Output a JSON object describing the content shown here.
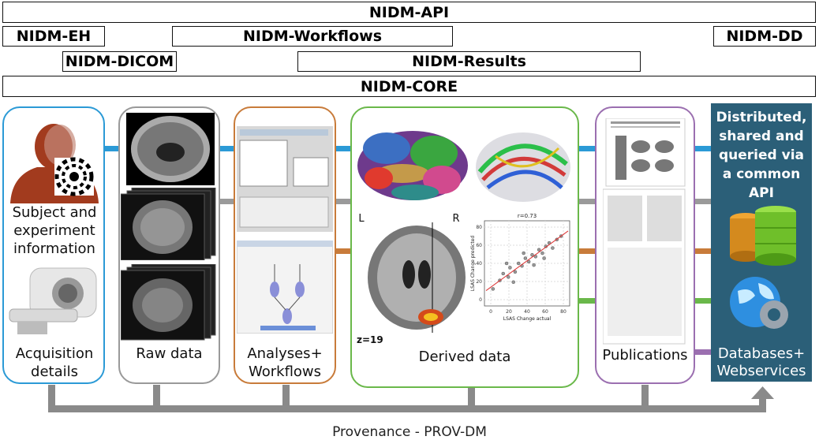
{
  "layers": {
    "api": "NIDM-API",
    "eh": "NIDM-EH",
    "workflows": "NIDM-Workflows",
    "dd": "NIDM-DD",
    "dicom": "NIDM-DICOM",
    "results": "NIDM-Results",
    "core": "NIDM-CORE"
  },
  "panels": {
    "subject_l1": "Subject and",
    "subject_l2": "experiment",
    "subject_l3": "information",
    "acq_l1": "Acquisition",
    "acq_l2": "details",
    "raw": "Raw data",
    "analyses_l1": "Analyses+",
    "analyses_l2": "Workflows",
    "derived": "Derived data",
    "publications": "Publications"
  },
  "brain": {
    "left": "L",
    "right": "R",
    "slice": "z=19"
  },
  "scatter": {
    "title": "r=0.73",
    "xlabel": "LSAS Change actual",
    "ylabel": "LSAS Change predicted",
    "xticks": [
      "0",
      "20",
      "40",
      "60",
      "80"
    ],
    "yticks": [
      "0",
      "20",
      "40",
      "60",
      "80"
    ]
  },
  "database": {
    "title_l1": "Distributed,",
    "title_l2": "shared and",
    "title_l3": "queried via",
    "title_l4": "a common",
    "title_l5": "API",
    "foot_l1": "Databases+",
    "foot_l2": "Webservices"
  },
  "provenance": "Provenance - PROV-DM",
  "colors": {
    "blue": "#2b9ad6",
    "gray": "#9a9a9a",
    "orange": "#c87b3a",
    "green": "#6ab84a",
    "purple": "#9b6fb0",
    "db_bg": "#2b5f78",
    "arrow": "#8a8a8a"
  }
}
